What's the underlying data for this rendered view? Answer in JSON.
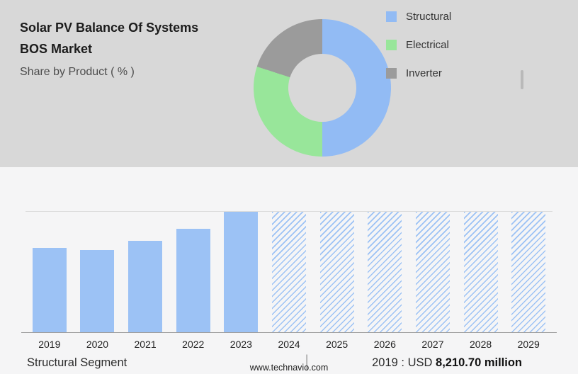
{
  "header": {
    "title_line1": "Solar PV Balance Of Systems",
    "title_line2": "BOS Market",
    "subtitle": "Share by Product ( % )"
  },
  "colors": {
    "structural_blue": "#92bbf4",
    "electrical_green": "#98e69a",
    "inverter_gray": "#9b9b9b",
    "bar_blue": "#9cc2f5",
    "top_background": "#d8d8d8",
    "bottom_background": "#f5f5f6"
  },
  "chart_data": [
    {
      "type": "pie",
      "title": "Share by Product ( % )",
      "donut": true,
      "labels": [
        "Structural",
        "Electrical",
        "Inverter"
      ],
      "values": [
        50,
        30,
        20
      ],
      "colors": [
        "#92bbf4",
        "#98e69a",
        "#9b9b9b"
      ],
      "legend_position": "right",
      "start_angle_deg": 0,
      "direction": "clockwise"
    },
    {
      "type": "bar",
      "categories": [
        "2019",
        "2020",
        "2021",
        "2022",
        "2023",
        "2024",
        "2025",
        "2026",
        "2027",
        "2028",
        "2029"
      ],
      "values": [
        70,
        68,
        76,
        86,
        100,
        100,
        100,
        100,
        100,
        100,
        100
      ],
      "value_unit": "relative height, % of 2023 peak (no y-axis shown)",
      "solid_years": [
        "2019",
        "2020",
        "2021",
        "2022",
        "2023"
      ],
      "hatched": [
        "2024",
        "2025",
        "2026",
        "2027",
        "2028",
        "2029"
      ],
      "annotation": "2019 : USD 8,210.70 million",
      "xlabel": "",
      "ylabel": "",
      "ylim": [
        0,
        100
      ],
      "grid": "top line only"
    }
  ],
  "footer": {
    "segment_label": "Structural Segment",
    "separator": "|",
    "value_prefix": "2019 : USD",
    "value_bold": "8,210.70 million",
    "website": "www.technavio.com"
  }
}
